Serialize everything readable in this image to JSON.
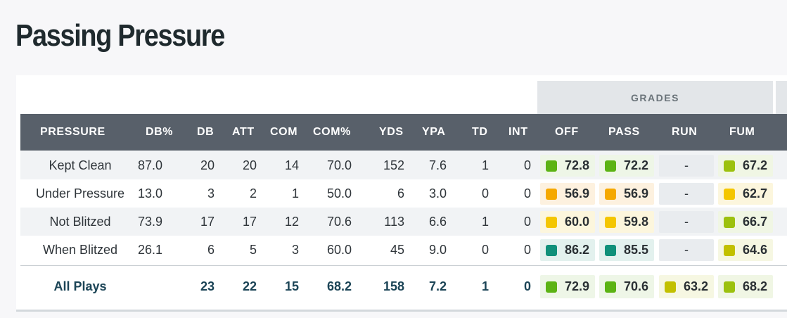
{
  "title": "Passing Pressure",
  "grades_header": "GRADES",
  "columns": [
    "PRESSURE",
    "DB%",
    "DB",
    "ATT",
    "COM",
    "COM%",
    "YDS",
    "YPA",
    "TD",
    "INT",
    "OFF",
    "PASS",
    "RUN",
    "FUM"
  ],
  "rows": [
    {
      "label": "Kept Clean",
      "db_pct": "87.0",
      "db": "20",
      "att": "20",
      "com": "14",
      "com_pct": "70.0",
      "yds": "152",
      "ypa": "7.6",
      "td": "1",
      "int": "0",
      "off": "72.8",
      "off_color": "green",
      "pass": "72.2",
      "pass_color": "green",
      "run": "-",
      "run_color": "none",
      "fum": "67.2",
      "fum_color": "lime"
    },
    {
      "label": "Under Pressure",
      "db_pct": "13.0",
      "db": "3",
      "att": "2",
      "com": "1",
      "com_pct": "50.0",
      "yds": "6",
      "ypa": "3.0",
      "td": "0",
      "int": "0",
      "off": "56.9",
      "off_color": "orange",
      "pass": "56.9",
      "pass_color": "orange",
      "run": "-",
      "run_color": "none",
      "fum": "62.7",
      "fum_color": "yellow"
    },
    {
      "label": "Not Blitzed",
      "db_pct": "73.9",
      "db": "17",
      "att": "17",
      "com": "12",
      "com_pct": "70.6",
      "yds": "113",
      "ypa": "6.6",
      "td": "1",
      "int": "0",
      "off": "60.0",
      "off_color": "yellow",
      "pass": "59.8",
      "pass_color": "yellow",
      "run": "-",
      "run_color": "none",
      "fum": "66.7",
      "fum_color": "lime"
    },
    {
      "label": "When Blitzed",
      "db_pct": "26.1",
      "db": "6",
      "att": "5",
      "com": "3",
      "com_pct": "60.0",
      "yds": "45",
      "ypa": "9.0",
      "td": "0",
      "int": "0",
      "off": "86.2",
      "off_color": "teal",
      "pass": "85.5",
      "pass_color": "teal",
      "run": "-",
      "run_color": "none",
      "fum": "64.6",
      "fum_color": "olive"
    }
  ],
  "total": {
    "label": "All Plays",
    "db_pct": "",
    "db": "23",
    "att": "22",
    "com": "15",
    "com_pct": "68.2",
    "yds": "158",
    "ypa": "7.2",
    "td": "1",
    "int": "0",
    "off": "72.9",
    "off_color": "green",
    "pass": "70.6",
    "pass_color": "green",
    "run": "63.2",
    "run_color": "olive",
    "fum": "68.2",
    "fum_color": "lime"
  },
  "grade_colors": {
    "green": "#5cb314",
    "orange": "#f5a800",
    "yellow": "#f4c600",
    "olive": "#c2c000",
    "lime": "#9cc10e",
    "teal": "#10907a"
  }
}
